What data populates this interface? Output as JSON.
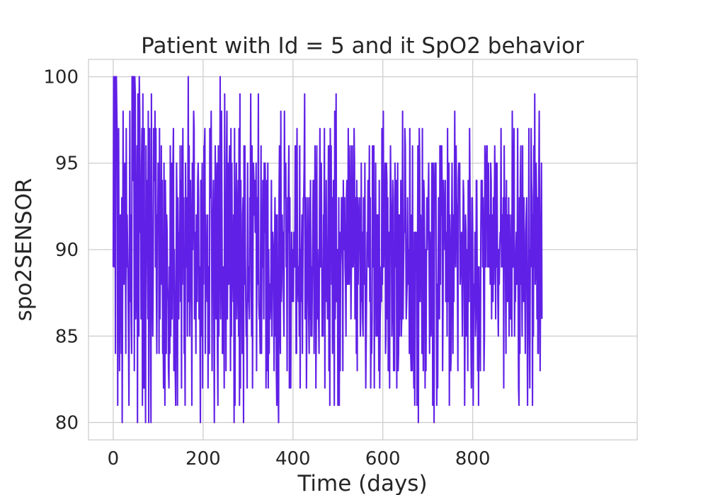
{
  "chart_data": {
    "type": "line",
    "title": "Patient with Id = 5 and it SpO2 behavior",
    "xlabel": "Time (days)",
    "ylabel": "spo2SENSOR",
    "xlim": [
      -55,
      1166
    ],
    "ylim": [
      79.0,
      101.0
    ],
    "xticks": [
      0,
      200,
      400,
      600,
      800
    ],
    "yticks": [
      80,
      85,
      90,
      95,
      100
    ],
    "grid": true,
    "legend": "none",
    "series": [
      {
        "name": "",
        "color": "#6020e6",
        "x_start": 0,
        "x_step": 1,
        "values": [
          89,
          100,
          89,
          93,
          100,
          84,
          99,
          100,
          98,
          96,
          81,
          95,
          97,
          88,
          83,
          90,
          92,
          89,
          84,
          93,
          80,
          88,
          98,
          92,
          88,
          93,
          95,
          91,
          84,
          97,
          89,
          92,
          90,
          88,
          85,
          81,
          90,
          98,
          87,
          92,
          86,
          84,
          100,
          100,
          94,
          100,
          97,
          83,
          100,
          99,
          86,
          88,
          90,
          96,
          80,
          99,
          91,
          85,
          100,
          98,
          91,
          94,
          86,
          95,
          97,
          81,
          99,
          84,
          82,
          97,
          82,
          85,
          80,
          96,
          91,
          94,
          89,
          86,
          98,
          80,
          95,
          97,
          89,
          85,
          80,
          99,
          91,
          88,
          85,
          89,
          97,
          96,
          94,
          98,
          89,
          97,
          88,
          84,
          92,
          91,
          95,
          93,
          84,
          97,
          86,
          89,
          90,
          96,
          88,
          94,
          84,
          86,
          82,
          95,
          88,
          81,
          94,
          91,
          84,
          92,
          91,
          88,
          87,
          83,
          82,
          89,
          84,
          96,
          85,
          90,
          95,
          86,
          91,
          95,
          97,
          83,
          90,
          86,
          83,
          81,
          88,
          95,
          92,
          81,
          93,
          90,
          86,
          91,
          89,
          96,
          87,
          94,
          82,
          96,
          88,
          97,
          90,
          93,
          84,
          86,
          81,
          95,
          90,
          89,
          93,
          85,
          92,
          100,
          87,
          96,
          85,
          88,
          94,
          91,
          88,
          81,
          95,
          90,
          93,
          98,
          97,
          86,
          91,
          88,
          84,
          92,
          88,
          87,
          94,
          95,
          93,
          86,
          89,
          86,
          80,
          94,
          85,
          91,
          95,
          82,
          90,
          88,
          96,
          96,
          97,
          84,
          92,
          89,
          90,
          87,
          92,
          82,
          87,
          89,
          84,
          97,
          93,
          93,
          98,
          91,
          83,
          92,
          92,
          94,
          86,
          80,
          90,
          96,
          93,
          86,
          90,
          95,
          84,
          81,
          96,
          85,
          90,
          90,
          100,
          86,
          90,
          98,
          92,
          84,
          84,
          89,
          88,
          82,
          99,
          88,
          90,
          83,
          95,
          98,
          86,
          90,
          95,
          88,
          94,
          96,
          91,
          83,
          97,
          85,
          95,
          89,
          89,
          87,
          92,
          80,
          97,
          81,
          93,
          91,
          95,
          86,
          88,
          92,
          94,
          85,
          97,
          81,
          99,
          82,
          94,
          87,
          90,
          84,
          92,
          93,
          80,
          96,
          88,
          96,
          90,
          87,
          85,
          86,
          82,
          95,
          87,
          89,
          87,
          86,
          93,
          93,
          99,
          88,
          85,
          96,
          82,
          90,
          95,
          94,
          92,
          94,
          91,
          91,
          95,
          83,
          93,
          88,
          91,
          99,
          87,
          86,
          86,
          84,
          90,
          96,
          84,
          91,
          89,
          94,
          92,
          86,
          95,
          91,
          95,
          93,
          82,
          86,
          94,
          83,
          95,
          82,
          90,
          84,
          88,
          86,
          87,
          89,
          94,
          85,
          91,
          91,
          90,
          87,
          83,
          90,
          93,
          85,
          92,
          83,
          81,
          92,
          85,
          82,
          80,
          93,
          96,
          86,
          84,
          98,
          87,
          88,
          92,
          90,
          91,
          87,
          85,
          98,
          93,
          93,
          95,
          89,
          90,
          83,
          93,
          91,
          94,
          96,
          82,
          93,
          84,
          82,
          87,
          91,
          87,
          88,
          90,
          87,
          91,
          89,
          89,
          96,
          96,
          84,
          84,
          97,
          90,
          88,
          87,
          89,
          85,
          96,
          82,
          90,
          87,
          90,
          92,
          84,
          89,
          93,
          93,
          95,
          99,
          86,
          89,
          93,
          82,
          86,
          89,
          93,
          90,
          86,
          84,
          93,
          86,
          94,
          85,
          89,
          85,
          88,
          91,
          94,
          94,
          84,
          90,
          96,
          93,
          82,
          86,
          96,
          86,
          90,
          88,
          86,
          84,
          92,
          97,
          89,
          92,
          95,
          90,
          85,
          88,
          85,
          92,
          91,
          97,
          82,
          91,
          90,
          94,
          87,
          89,
          86,
          91,
          96,
          83,
          96,
          81,
          97,
          91,
          96,
          88,
          93,
          84,
          89,
          94,
          90,
          81,
          98,
          86,
          90,
          99,
          87,
          90,
          90,
          81,
          84,
          93,
          81,
          91,
          83,
          89,
          90,
          93,
          93,
          91,
          83,
          94,
          91,
          90,
          93,
          89,
          88,
          85,
          93,
          94,
          88,
          88,
          97,
          92,
          88,
          91,
          96,
          91,
          86,
          89,
          96,
          96,
          89,
          89,
          90,
          97,
          95,
          86,
          87,
          93,
          84,
          94,
          83,
          93,
          88,
          91,
          92,
          93,
          90,
          85,
          87,
          95,
          87,
          91,
          86,
          85,
          93,
          89,
          88,
          95,
          87,
          82,
          85,
          88,
          91,
          90,
          94,
          89,
          91,
          96,
          87,
          93,
          82,
          86,
          84,
          86,
          96,
          89,
          92,
          96,
          82,
          91,
          88,
          95,
          85,
          88,
          92,
          85,
          92,
          89,
          83,
          94,
          82,
          86,
          87,
          89,
          87,
          97,
          88,
          93,
          98,
          89,
          93,
          91,
          95,
          84,
          85,
          95,
          94,
          86,
          93,
          83,
          85,
          91,
          82,
          90,
          96,
          93,
          92,
          85,
          87,
          94,
          93,
          83,
          89,
          83,
          95,
          90,
          89,
          94,
          82,
          88,
          95,
          83,
          84,
          92,
          85,
          92,
          86,
          94,
          85,
          86,
          90,
          98,
          86,
          89,
          91,
          91,
          97,
          96,
          91,
          86,
          87,
          88,
          93,
          89,
          88,
          90,
          84,
          97,
          89,
          84,
          83,
          92,
          83,
          96,
          85,
          85,
          82,
          91,
          81,
          91,
          91,
          91,
          90,
          81,
          88,
          96,
          80,
          89,
          97,
          95,
          87,
          92,
          91,
          91,
          84,
          97,
          87,
          83,
          94,
          93,
          90,
          82,
          90,
          83,
          89,
          93,
          90,
          92,
          93,
          95,
          89,
          84,
          91,
          88,
          85,
          86,
          95,
          93,
          81,
          95,
          92,
          80,
          93,
          95,
          95,
          95,
          88,
          81,
          88,
          82,
          88,
          93,
          91,
          86,
          96,
          88,
          96,
          92,
          96,
          93,
          83,
          87,
          94,
          92,
          93,
          90,
          94,
          87,
          89,
          91,
          85,
          97,
          87,
          93,
          95,
          81,
          92,
          90,
          83,
          84,
          91,
          95,
          90,
          84,
          92,
          87,
          92,
          98,
          90,
          89,
          96,
          93,
          92,
          88,
          83,
          94,
          95,
          94,
          95,
          88,
          89,
          89,
          91,
          88,
          85,
          89,
          94,
          93,
          89,
          81,
          86,
          92,
          91,
          85,
          88,
          90,
          83,
          94,
          92,
          87,
          97,
          93,
          93,
          85,
          82,
          87,
          93,
          91,
          81,
          86,
          88,
          87,
          91,
          85,
          86,
          94,
          94,
          88,
          83,
          89,
          81,
          89,
          84,
          87,
          83,
          91,
          94,
          93,
          94,
          89,
          93,
          90,
          83,
          85,
          96,
          92,
          89,
          95,
          96,
          96,
          89,
          91,
          95,
          89,
          91,
          92,
          88,
          95,
          94,
          86,
          92,
          88,
          87,
          93,
          88,
          92,
          96,
          93,
          86,
          95,
          89,
          95,
          90,
          87,
          85,
          90,
          88,
          90,
          91,
          91,
          97,
          89,
          90,
          92,
          89,
          93,
          82,
          96,
          92,
          93,
          88,
          84,
          94,
          87,
          92,
          90,
          87,
          93,
          85,
          92,
          89,
          86,
          87,
          92,
          85,
          98,
          94,
          89,
          92,
          97,
          85,
          88,
          87,
          90,
          91,
          88,
          90,
          97,
          88,
          82,
          81,
          93,
          84,
          94,
          96,
          88,
          89,
          85,
          96,
          87,
          87,
          93,
          88,
          88,
          84,
          91,
          92,
          93,
          87,
          81,
          87,
          89,
          97,
          85,
          82,
          90,
          89,
          97,
          94,
          93,
          81,
          92,
          85,
          96,
          89,
          99,
          88,
          89,
          95,
          93,
          86,
          93,
          84,
          84,
          94,
          98,
          89,
          83,
          88,
          92,
          95,
          86
        ]
      }
    ]
  }
}
